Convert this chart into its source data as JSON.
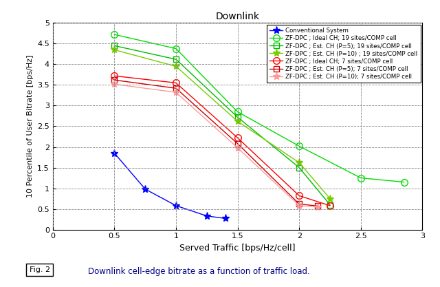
{
  "title": "Downlink",
  "xlabel": "Served Traffic [bps/Hz/cell]",
  "ylabel": "10 Percentile of User Bitrate [bps/Hz]",
  "xlim": [
    0,
    3
  ],
  "ylim": [
    0,
    5
  ],
  "xticks": [
    0,
    0.5,
    1,
    1.5,
    2,
    2.5,
    3
  ],
  "yticks": [
    0,
    0.5,
    1,
    1.5,
    2,
    2.5,
    3,
    3.5,
    4,
    4.5,
    5
  ],
  "caption_box": "Fig. 2",
  "caption_text": "Downlink cell-edge bitrate as a function of traffic load.",
  "fig_width": 6.4,
  "fig_height": 4.17,
  "series": [
    {
      "label": "Conventional System",
      "color": "#0000ff",
      "marker": "*",
      "linestyle": "-",
      "markersize": 8,
      "markerfacecolor": "#0000ff",
      "x": [
        0.5,
        0.75,
        1.0,
        1.25,
        1.4
      ],
      "y": [
        1.85,
        0.98,
        0.58,
        0.33,
        0.27
      ]
    },
    {
      "label": "ZF-DPC ; Ideal CH; 19 sites/COMP cell",
      "color": "#00dd00",
      "marker": "o",
      "linestyle": "-",
      "markersize": 7,
      "markerfacecolor": "none",
      "x": [
        0.5,
        1.0,
        1.5,
        2.0,
        2.5,
        2.85
      ],
      "y": [
        4.72,
        4.38,
        2.85,
        2.02,
        1.25,
        1.15
      ]
    },
    {
      "label": "ZF-DPC ; Est. CH (P=5); 19 sites/COMP cell",
      "color": "#00bb00",
      "marker": "s",
      "linestyle": "-",
      "markersize": 6,
      "markerfacecolor": "none",
      "x": [
        0.5,
        1.0,
        1.5,
        2.0,
        2.25
      ],
      "y": [
        4.45,
        4.12,
        2.72,
        1.5,
        0.6
      ]
    },
    {
      "label": "ZF-DPC ; Est. CH (P=10) ; 19 sites/COMP cell",
      "color": "#77cc00",
      "marker": "*",
      "linestyle": "-",
      "markersize": 8,
      "markerfacecolor": "#77cc00",
      "x": [
        0.5,
        1.0,
        1.5,
        2.0,
        2.25
      ],
      "y": [
        4.35,
        3.95,
        2.62,
        1.62,
        0.75
      ]
    },
    {
      "label": "ZF-DPC ; Ideal CH; 7 sites/COMP cell",
      "color": "#ff0000",
      "marker": "o",
      "linestyle": "-",
      "markersize": 7,
      "markerfacecolor": "none",
      "x": [
        0.5,
        1.0,
        1.5,
        2.0,
        2.25
      ],
      "y": [
        3.72,
        3.55,
        2.22,
        0.82,
        0.58
      ]
    },
    {
      "label": "ZF-DPC ; Est. CH (P=5); 7 sites/COMP cell",
      "color": "#cc0000",
      "marker": "s",
      "linestyle": "-",
      "markersize": 6,
      "markerfacecolor": "none",
      "x": [
        0.5,
        1.0,
        1.5,
        2.0,
        2.15
      ],
      "y": [
        3.62,
        3.42,
        2.08,
        0.62,
        0.57
      ]
    },
    {
      "label": "ZF-DPC ; Est. CH (P=10); 7 sites/COMP cell",
      "color": "#ff9999",
      "marker": "*",
      "linestyle": "-",
      "markersize": 8,
      "markerfacecolor": "#ff9999",
      "x": [
        0.5,
        1.0,
        1.5,
        2.0,
        2.15
      ],
      "y": [
        3.52,
        3.32,
        1.98,
        0.58,
        0.55
      ]
    }
  ]
}
